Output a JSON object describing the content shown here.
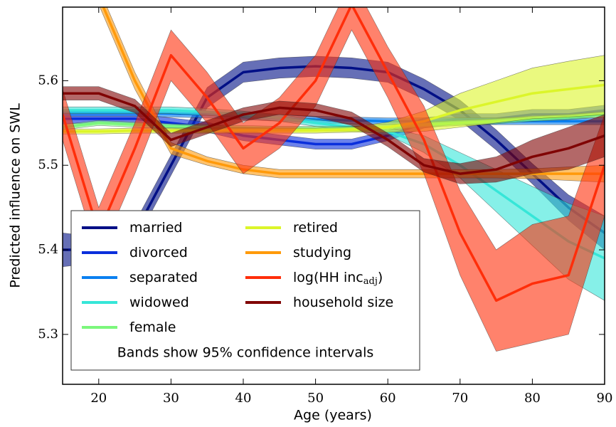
{
  "chart_data": {
    "type": "line",
    "x_label": "Age (years)",
    "y_label": "Predicted influence on SWL",
    "annotation": "Bands show 95% confidence intervals",
    "x": [
      15,
      20,
      25,
      30,
      35,
      40,
      45,
      50,
      55,
      60,
      65,
      70,
      75,
      80,
      85,
      90
    ],
    "xlim": [
      15,
      90
    ],
    "xticks": [
      20,
      30,
      40,
      50,
      60,
      70,
      80,
      90
    ],
    "ylim": [
      5.241,
      5.687
    ],
    "yticks": [
      5.3,
      5.4,
      5.5,
      5.6
    ],
    "legend": "lower left",
    "series": [
      {
        "name": "married",
        "color": "#000f86",
        "values": [
          5.4,
          5.4,
          5.42,
          5.5,
          5.58,
          5.61,
          5.615,
          5.617,
          5.615,
          5.61,
          5.59,
          5.565,
          5.53,
          5.49,
          5.45,
          5.42
        ],
        "lower": [
          5.38,
          5.385,
          5.408,
          5.488,
          5.568,
          5.598,
          5.603,
          5.605,
          5.603,
          5.598,
          5.578,
          5.553,
          5.518,
          5.478,
          5.435,
          5.4
        ],
        "upper": [
          5.42,
          5.415,
          5.432,
          5.512,
          5.592,
          5.622,
          5.627,
          5.629,
          5.627,
          5.622,
          5.602,
          5.577,
          5.542,
          5.502,
          5.465,
          5.44
        ]
      },
      {
        "name": "divorced",
        "color": "#0a2fdc",
        "values": [
          5.555,
          5.555,
          5.555,
          5.55,
          5.545,
          5.535,
          5.53,
          5.525,
          5.525,
          5.535,
          5.55,
          5.555,
          5.555,
          5.56,
          5.56,
          5.565
        ],
        "lower": [
          5.549,
          5.549,
          5.549,
          5.544,
          5.539,
          5.529,
          5.524,
          5.519,
          5.519,
          5.529,
          5.544,
          5.549,
          5.549,
          5.554,
          5.554,
          5.559
        ],
        "upper": [
          5.561,
          5.561,
          5.561,
          5.556,
          5.551,
          5.541,
          5.536,
          5.531,
          5.531,
          5.541,
          5.556,
          5.561,
          5.561,
          5.566,
          5.566,
          5.571
        ]
      },
      {
        "name": "separated",
        "color": "#0a80f0",
        "values": [
          5.562,
          5.562,
          5.562,
          5.561,
          5.56,
          5.558,
          5.556,
          5.554,
          5.553,
          5.552,
          5.552,
          5.552,
          5.552,
          5.552,
          5.552,
          5.552
        ],
        "lower": [
          5.558,
          5.558,
          5.558,
          5.557,
          5.556,
          5.554,
          5.552,
          5.55,
          5.549,
          5.548,
          5.548,
          5.548,
          5.548,
          5.548,
          5.548,
          5.548
        ],
        "upper": [
          5.566,
          5.566,
          5.566,
          5.565,
          5.564,
          5.562,
          5.56,
          5.558,
          5.557,
          5.556,
          5.556,
          5.556,
          5.556,
          5.556,
          5.556,
          5.556
        ]
      },
      {
        "name": "widowed",
        "color": "#36e6d8",
        "values": [
          5.565,
          5.565,
          5.565,
          5.565,
          5.563,
          5.56,
          5.556,
          5.55,
          5.545,
          5.54,
          5.525,
          5.5,
          5.47,
          5.44,
          5.41,
          5.39
        ],
        "lower": [
          5.561,
          5.561,
          5.561,
          5.561,
          5.559,
          5.556,
          5.552,
          5.546,
          5.541,
          5.536,
          5.515,
          5.485,
          5.445,
          5.405,
          5.365,
          5.34
        ],
        "upper": [
          5.569,
          5.569,
          5.569,
          5.569,
          5.567,
          5.564,
          5.56,
          5.554,
          5.549,
          5.544,
          5.535,
          5.515,
          5.495,
          5.475,
          5.455,
          5.44
        ]
      },
      {
        "name": "female",
        "color": "#7cf77c",
        "values": [
          5.545,
          5.55,
          5.548,
          5.546,
          5.545,
          5.544,
          5.543,
          5.543,
          5.543,
          5.545,
          5.548,
          5.55,
          5.552,
          5.555,
          5.557,
          5.56
        ],
        "lower": [
          5.542,
          5.547,
          5.545,
          5.543,
          5.542,
          5.541,
          5.54,
          5.54,
          5.54,
          5.542,
          5.545,
          5.547,
          5.549,
          5.552,
          5.554,
          5.557
        ],
        "upper": [
          5.548,
          5.553,
          5.551,
          5.549,
          5.548,
          5.547,
          5.546,
          5.546,
          5.546,
          5.548,
          5.551,
          5.553,
          5.555,
          5.558,
          5.56,
          5.563
        ]
      },
      {
        "name": "retired",
        "color": "#dcf52a",
        "values": [
          5.54,
          5.54,
          5.541,
          5.541,
          5.541,
          5.541,
          5.541,
          5.541,
          5.542,
          5.545,
          5.552,
          5.565,
          5.575,
          5.585,
          5.59,
          5.595
        ],
        "lower": [
          5.537,
          5.537,
          5.538,
          5.538,
          5.538,
          5.538,
          5.538,
          5.538,
          5.539,
          5.539,
          5.54,
          5.545,
          5.55,
          5.555,
          5.557,
          5.56
        ],
        "upper": [
          5.543,
          5.543,
          5.544,
          5.544,
          5.544,
          5.544,
          5.544,
          5.544,
          5.545,
          5.551,
          5.564,
          5.585,
          5.6,
          5.615,
          5.623,
          5.63
        ]
      },
      {
        "name": "studying",
        "color": "#ff9a0a",
        "values": [
          5.8,
          5.7,
          5.6,
          5.52,
          5.505,
          5.495,
          5.49,
          5.49,
          5.49,
          5.49,
          5.49,
          5.49,
          5.49,
          5.49,
          5.49,
          5.49
        ],
        "lower": [
          5.79,
          5.69,
          5.59,
          5.513,
          5.5,
          5.49,
          5.485,
          5.485,
          5.485,
          5.485,
          5.485,
          5.485,
          5.485,
          5.484,
          5.482,
          5.48
        ],
        "upper": [
          5.81,
          5.71,
          5.61,
          5.527,
          5.51,
          5.5,
          5.495,
          5.495,
          5.495,
          5.495,
          5.495,
          5.495,
          5.495,
          5.496,
          5.498,
          5.5
        ]
      },
      {
        "name": "log(HH inc",
        "name_sub": "adj",
        "name_suffix": ")",
        "color": "#ff2e0a",
        "values": [
          5.56,
          5.42,
          5.52,
          5.63,
          5.58,
          5.52,
          5.55,
          5.6,
          5.69,
          5.61,
          5.53,
          5.42,
          5.34,
          5.36,
          5.37,
          5.5
        ],
        "lower": [
          5.53,
          5.39,
          5.49,
          5.6,
          5.55,
          5.49,
          5.52,
          5.57,
          5.66,
          5.58,
          5.49,
          5.37,
          5.28,
          5.29,
          5.3,
          5.44
        ],
        "upper": [
          5.59,
          5.45,
          5.55,
          5.66,
          5.61,
          5.55,
          5.58,
          5.63,
          5.72,
          5.64,
          5.57,
          5.47,
          5.4,
          5.43,
          5.44,
          5.56
        ]
      },
      {
        "name": "household size",
        "color": "#800404",
        "values": [
          5.585,
          5.585,
          5.57,
          5.53,
          5.545,
          5.56,
          5.568,
          5.565,
          5.555,
          5.53,
          5.5,
          5.49,
          5.495,
          5.51,
          5.52,
          5.535
        ],
        "lower": [
          5.577,
          5.577,
          5.562,
          5.522,
          5.537,
          5.552,
          5.56,
          5.557,
          5.547,
          5.522,
          5.492,
          5.478,
          5.48,
          5.49,
          5.495,
          5.51
        ],
        "upper": [
          5.593,
          5.593,
          5.578,
          5.538,
          5.553,
          5.568,
          5.576,
          5.573,
          5.563,
          5.538,
          5.508,
          5.502,
          5.51,
          5.53,
          5.545,
          5.56
        ]
      }
    ]
  }
}
